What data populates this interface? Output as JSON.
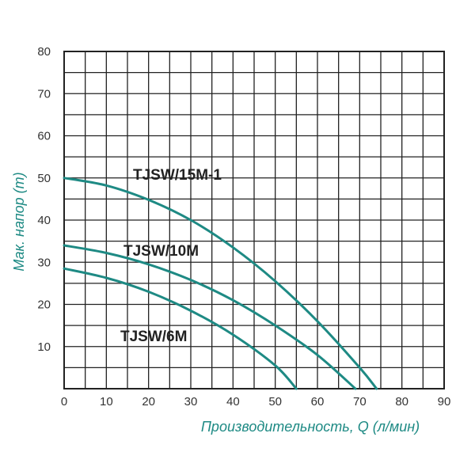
{
  "chart_data": {
    "type": "line",
    "xlabel": "Производительность, Q (л/мин)",
    "ylabel": "Мак. напор (m)",
    "xlim": [
      0,
      90
    ],
    "ylim": [
      0,
      80
    ],
    "x_ticks": [
      "0",
      "10",
      "20",
      "30",
      "40",
      "50",
      "60",
      "70",
      "80",
      "90"
    ],
    "y_ticks": [
      "80",
      "70",
      "60",
      "50",
      "40",
      "30",
      "20",
      "10"
    ],
    "grid": true,
    "minor_grid_step": 5,
    "series": [
      {
        "name": "TJSW/15M-1",
        "x": [
          0,
          10,
          20,
          30,
          40,
          50,
          60,
          70,
          74
        ],
        "y": [
          50,
          48.2,
          44.8,
          40,
          33.5,
          25.5,
          16,
          5,
          0
        ]
      },
      {
        "name": "TJSW/10M",
        "x": [
          0,
          10,
          20,
          30,
          40,
          50,
          60,
          69
        ],
        "y": [
          34,
          32.2,
          29.5,
          25.8,
          21,
          15,
          8,
          0
        ]
      },
      {
        "name": "TJSW/6M",
        "x": [
          0,
          10,
          20,
          30,
          40,
          50,
          55
        ],
        "y": [
          28.5,
          26.3,
          23,
          18.5,
          12.8,
          5.5,
          0
        ]
      }
    ],
    "colors": {
      "line": "#1e8a84",
      "grid": "#222222",
      "axis_title": "#1e8a84"
    }
  }
}
